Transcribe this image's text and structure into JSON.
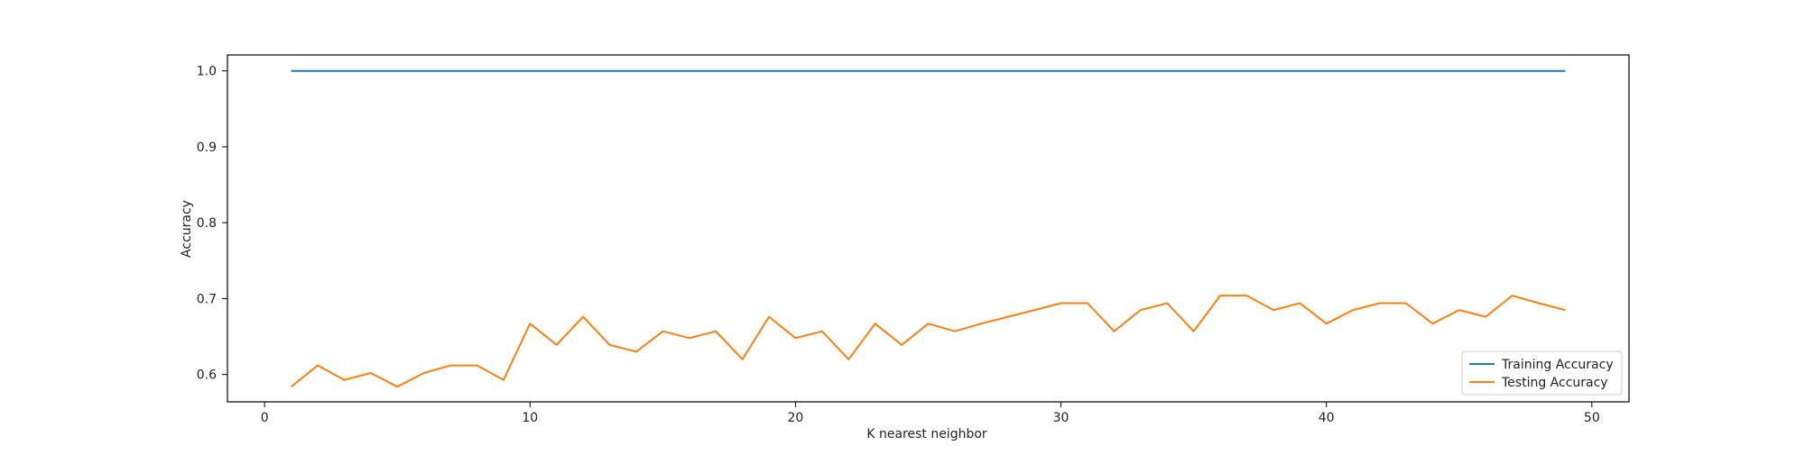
{
  "chart_data": {
    "type": "line",
    "title": "",
    "xlabel": "K nearest neighbor",
    "ylabel": "Accuracy",
    "xlim": [
      -1.4,
      51.4
    ],
    "ylim": [
      0.564,
      1.021
    ],
    "xticks": [
      0,
      10,
      20,
      30,
      40,
      50
    ],
    "yticks": [
      0.6,
      0.7,
      0.8,
      0.9,
      1.0
    ],
    "xtick_labels": [
      "0",
      "10",
      "20",
      "30",
      "40",
      "50"
    ],
    "ytick_labels": [
      "0.6",
      "0.7",
      "0.8",
      "0.9",
      "1.0"
    ],
    "grid": false,
    "legend_position": "lower-right",
    "x": [
      1,
      2,
      3,
      4,
      5,
      6,
      7,
      8,
      9,
      10,
      11,
      12,
      13,
      14,
      15,
      16,
      17,
      18,
      19,
      20,
      21,
      22,
      23,
      24,
      25,
      26,
      27,
      28,
      29,
      30,
      31,
      32,
      33,
      34,
      35,
      36,
      37,
      38,
      39,
      40,
      41,
      42,
      43,
      44,
      45,
      46,
      47,
      48,
      49
    ],
    "series": [
      {
        "name": "Training Accuracy",
        "color": "#1f77b4",
        "values": [
          1.0,
          1.0,
          1.0,
          1.0,
          1.0,
          1.0,
          1.0,
          1.0,
          1.0,
          1.0,
          1.0,
          1.0,
          1.0,
          1.0,
          1.0,
          1.0,
          1.0,
          1.0,
          1.0,
          1.0,
          1.0,
          1.0,
          1.0,
          1.0,
          1.0,
          1.0,
          1.0,
          1.0,
          1.0,
          1.0,
          1.0,
          1.0,
          1.0,
          1.0,
          1.0,
          1.0,
          1.0,
          1.0,
          1.0,
          1.0,
          1.0,
          1.0,
          1.0,
          1.0,
          1.0,
          1.0,
          1.0,
          1.0,
          1.0
        ]
      },
      {
        "name": "Testing Accuracy",
        "color": "#ff7f0e",
        "values": [
          0.584,
          0.612,
          0.593,
          0.602,
          0.584,
          0.602,
          0.612,
          0.612,
          0.593,
          0.667,
          0.639,
          0.676,
          0.639,
          0.63,
          0.657,
          0.648,
          0.657,
          0.62,
          0.676,
          0.648,
          0.657,
          0.62,
          0.667,
          0.639,
          0.667,
          0.657,
          0.667,
          0.676,
          0.685,
          0.694,
          0.694,
          0.657,
          0.685,
          0.694,
          0.657,
          0.704,
          0.704,
          0.685,
          0.694,
          0.667,
          0.685,
          0.694,
          0.694,
          0.667,
          0.685,
          0.676,
          0.704,
          0.694,
          0.685
        ]
      }
    ]
  }
}
